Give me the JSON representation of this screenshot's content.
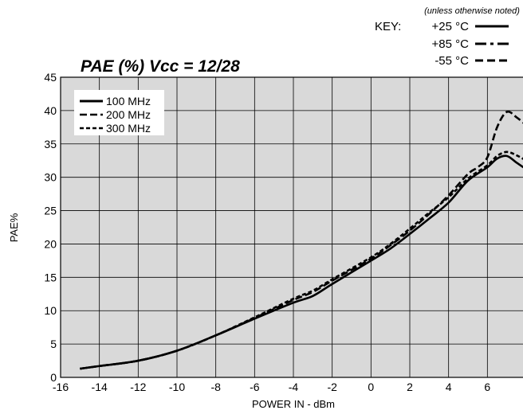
{
  "chart_data": {
    "type": "line",
    "title": "PAE (%) Vcc = 12/28",
    "note": "(unless otherwise noted)",
    "key_label": "KEY:",
    "temperature_key": [
      {
        "label": "+25 °C",
        "dash": "solid"
      },
      {
        "label": "+85 °C",
        "dash": "dashdot"
      },
      {
        "label": "-55 °C",
        "dash": "dashed"
      }
    ],
    "xlabel": "POWER IN - dBm",
    "ylabel": "PAE%",
    "xlim": [
      -16,
      8
    ],
    "ylim": [
      0,
      45
    ],
    "xticks": [
      -16,
      -14,
      -12,
      -10,
      -8,
      -6,
      -4,
      -2,
      0,
      2,
      4,
      6,
      8
    ],
    "yticks": [
      0,
      5,
      10,
      15,
      20,
      25,
      30,
      35,
      40,
      45
    ],
    "grid": true,
    "legend_position": "top-left",
    "series": [
      {
        "name": "100 MHz",
        "dash": "solid",
        "points": [
          [
            -15,
            1.3
          ],
          [
            -14,
            1.7
          ],
          [
            -12,
            2.5
          ],
          [
            -10,
            4.0
          ],
          [
            -8,
            6.3
          ],
          [
            -6,
            8.8
          ],
          [
            -4,
            11.2
          ],
          [
            -3,
            12.2
          ],
          [
            -2,
            14.0
          ],
          [
            0,
            17.5
          ],
          [
            1,
            19.3
          ],
          [
            2,
            21.5
          ],
          [
            3,
            23.8
          ],
          [
            4,
            26.2
          ],
          [
            5,
            29.5
          ],
          [
            6,
            31.5
          ],
          [
            6.5,
            32.8
          ],
          [
            7,
            33.2
          ],
          [
            7.5,
            32.2
          ],
          [
            8,
            31.2
          ]
        ]
      },
      {
        "name": "200 MHz",
        "dash": "dashed",
        "points": [
          [
            -15,
            1.3
          ],
          [
            -14,
            1.7
          ],
          [
            -12,
            2.5
          ],
          [
            -10,
            4.0
          ],
          [
            -8,
            6.3
          ],
          [
            -6,
            8.9
          ],
          [
            -4,
            11.6
          ],
          [
            -3,
            12.8
          ],
          [
            -2,
            14.5
          ],
          [
            0,
            17.8
          ],
          [
            1,
            19.8
          ],
          [
            2,
            22.0
          ],
          [
            3,
            24.5
          ],
          [
            4,
            27.3
          ],
          [
            5,
            30.5
          ],
          [
            5.5,
            31.5
          ],
          [
            6,
            33.0
          ],
          [
            6.5,
            37.5
          ],
          [
            7,
            39.8
          ],
          [
            7.5,
            39.0
          ],
          [
            8,
            37.8
          ]
        ]
      },
      {
        "name": "300 MHz",
        "dash": "shortdash",
        "points": [
          [
            -15,
            1.3
          ],
          [
            -14,
            1.7
          ],
          [
            -12,
            2.5
          ],
          [
            -10,
            4.0
          ],
          [
            -8,
            6.3
          ],
          [
            -6,
            9.0
          ],
          [
            -4,
            11.8
          ],
          [
            -3,
            13.0
          ],
          [
            -2,
            14.7
          ],
          [
            0,
            18.0
          ],
          [
            1,
            20.0
          ],
          [
            2,
            22.3
          ],
          [
            3,
            24.7
          ],
          [
            4,
            27.0
          ],
          [
            5,
            29.8
          ],
          [
            6,
            31.8
          ],
          [
            6.5,
            33.2
          ],
          [
            7,
            33.8
          ],
          [
            7.5,
            33.3
          ],
          [
            8,
            32.5
          ]
        ]
      }
    ]
  }
}
